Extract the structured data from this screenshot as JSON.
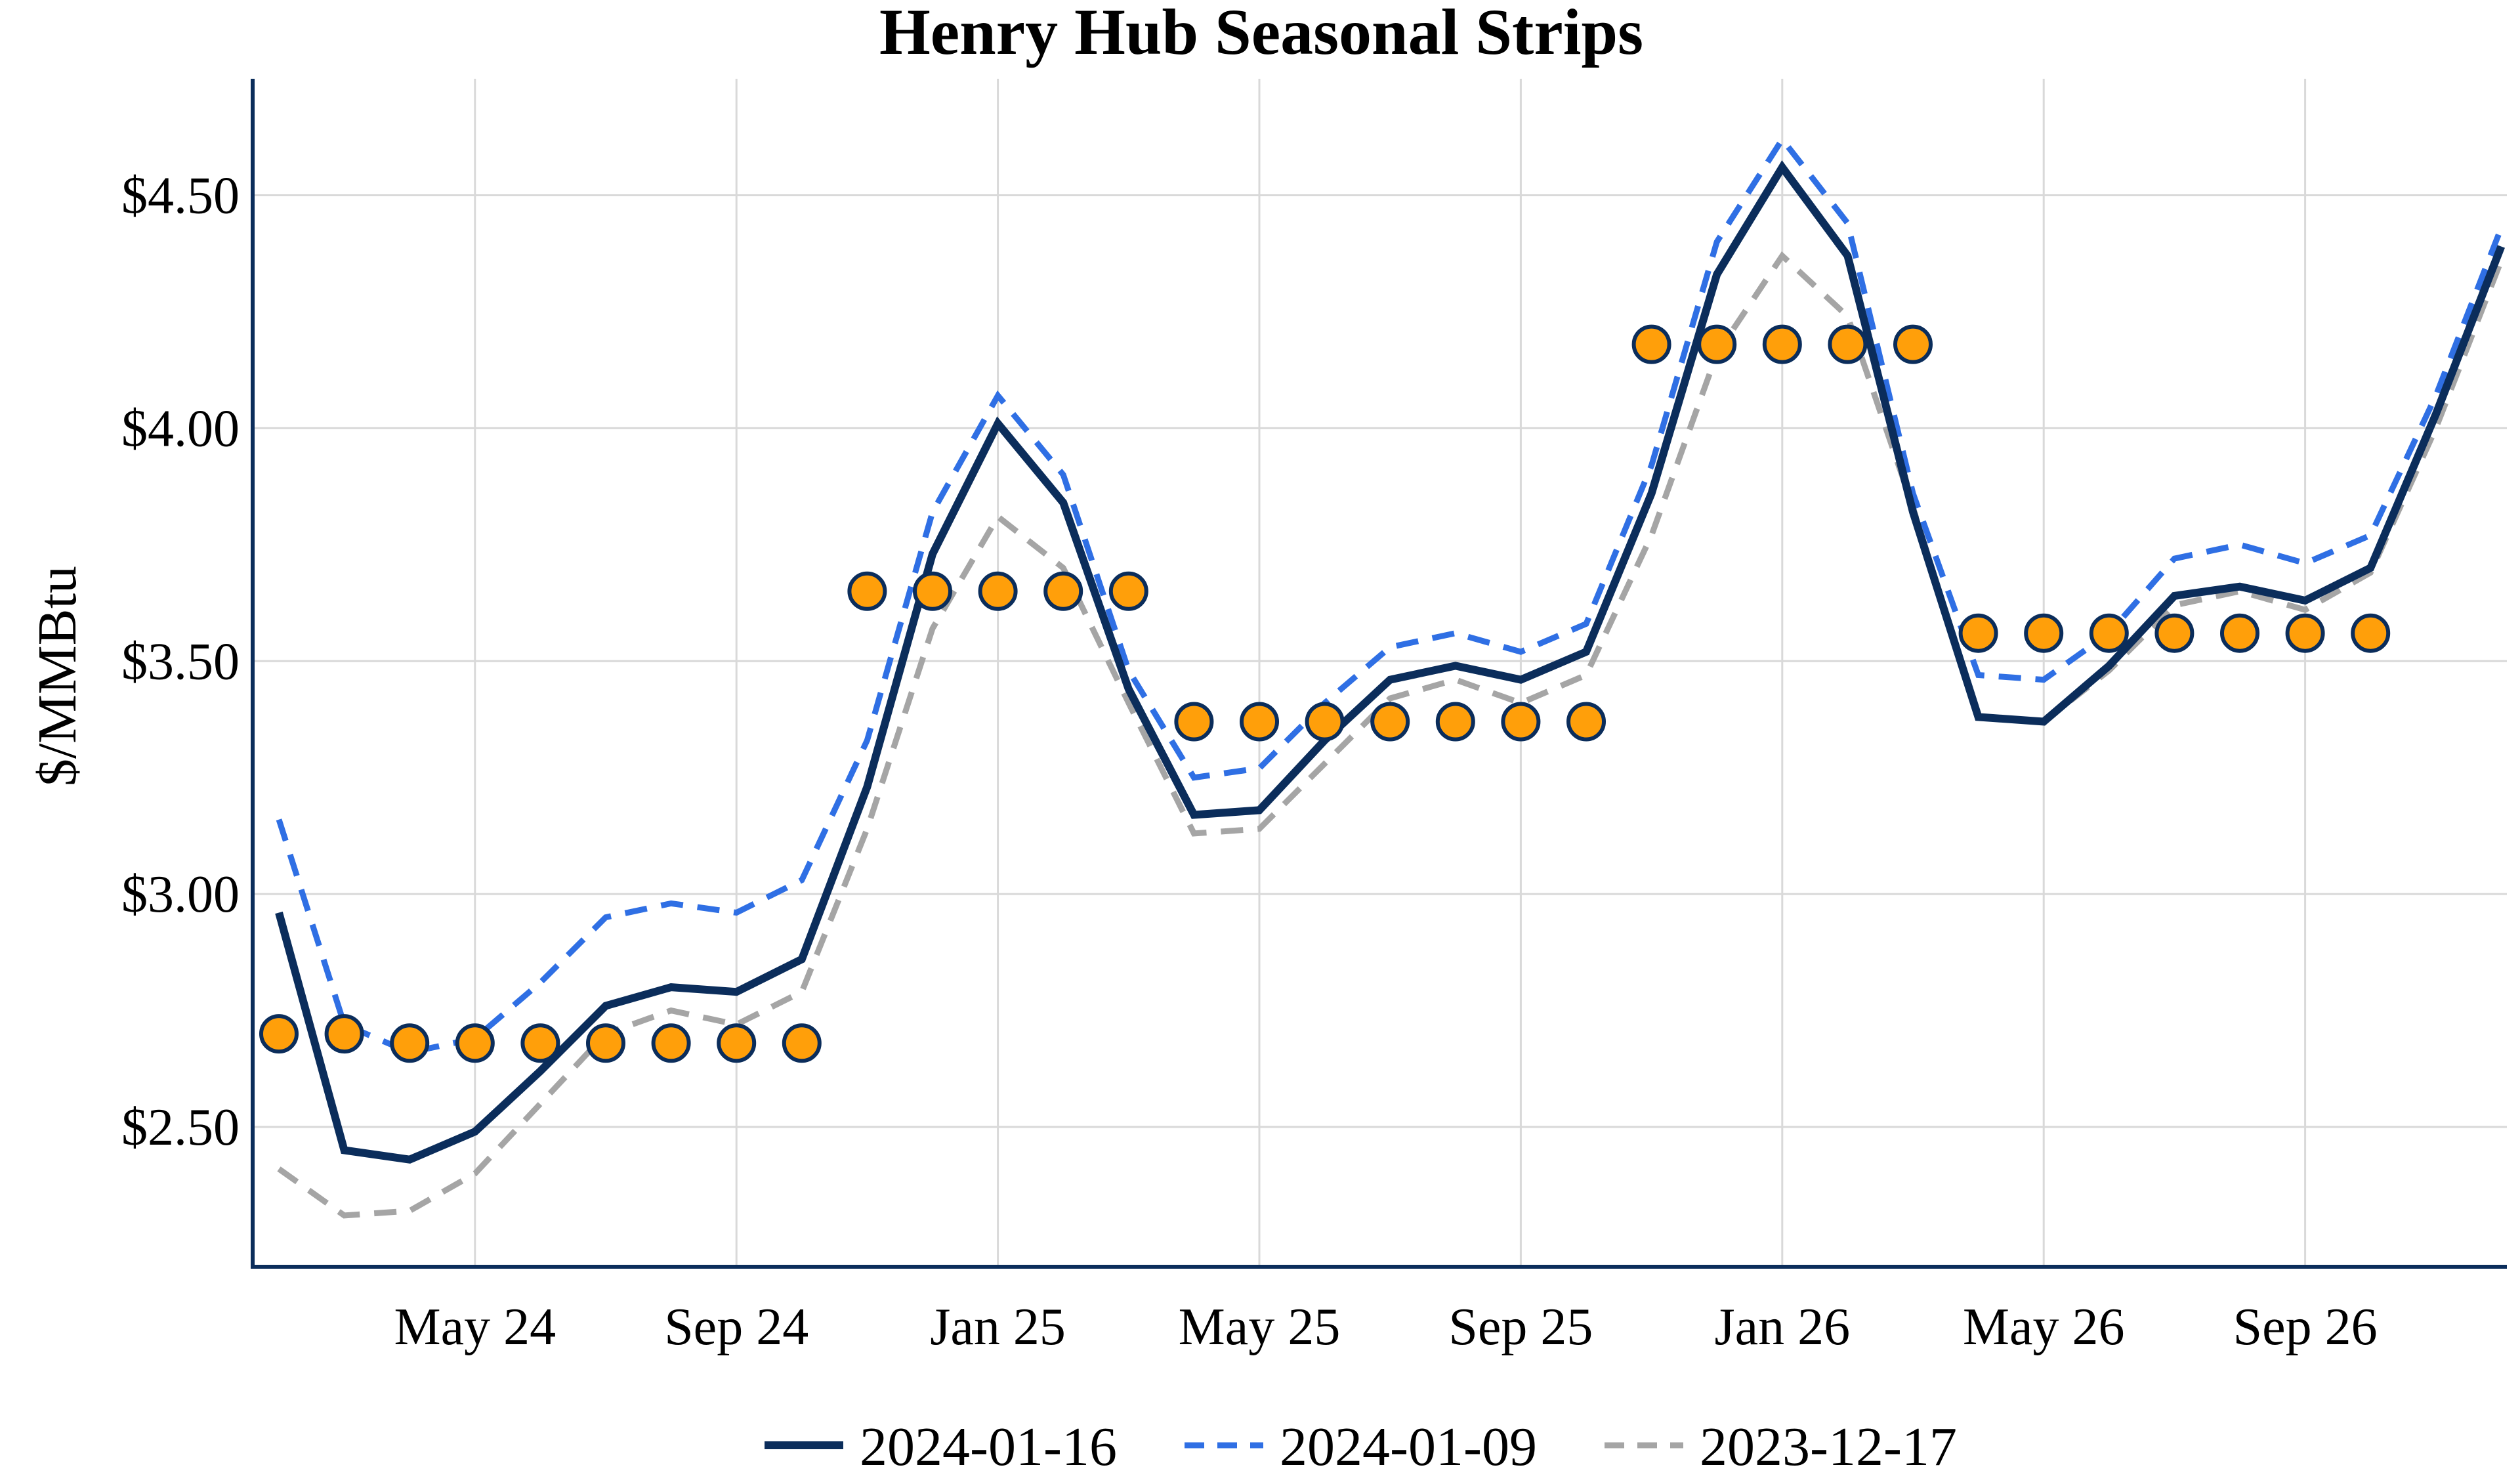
{
  "chart_data": {
    "type": "line",
    "title": "Henry Hub Seasonal Strips",
    "ylabel": "$/MMBtu",
    "xlabel": "",
    "ylim": [
      2.2,
      4.75
    ],
    "xlim": [
      "2024-02",
      "2026-12"
    ],
    "grid": true,
    "legend_position": "bottom-center",
    "y_ticks": [
      {
        "value": 2.5,
        "label": "$2.50"
      },
      {
        "value": 3.0,
        "label": "$3.00"
      },
      {
        "value": 3.5,
        "label": "$3.50"
      },
      {
        "value": 4.0,
        "label": "$4.00"
      },
      {
        "value": 4.5,
        "label": "$4.50"
      }
    ],
    "x_ticks": [
      {
        "value": "2024-05",
        "label": "May 24"
      },
      {
        "value": "2024-09",
        "label": "Sep 24"
      },
      {
        "value": "2025-01",
        "label": "Jan 25"
      },
      {
        "value": "2025-05",
        "label": "May 25"
      },
      {
        "value": "2025-09",
        "label": "Sep 25"
      },
      {
        "value": "2026-01",
        "label": "Jan 26"
      },
      {
        "value": "2026-05",
        "label": "May 26"
      },
      {
        "value": "2026-09",
        "label": "Sep 26"
      }
    ],
    "x": [
      "2024-02",
      "2024-03",
      "2024-04",
      "2024-05",
      "2024-06",
      "2024-07",
      "2024-08",
      "2024-09",
      "2024-10",
      "2024-11",
      "2024-12",
      "2025-01",
      "2025-02",
      "2025-03",
      "2025-04",
      "2025-05",
      "2025-06",
      "2025-07",
      "2025-08",
      "2025-09",
      "2025-10",
      "2025-11",
      "2025-12",
      "2026-01",
      "2026-02",
      "2026-03",
      "2026-04",
      "2026-05",
      "2026-06",
      "2026-07",
      "2026-08",
      "2026-09",
      "2026-10",
      "2026-11",
      "2026-12"
    ],
    "series": [
      {
        "name": "2024-01-16",
        "color": "#0b2d5b",
        "style": "solid",
        "values": [
          2.96,
          2.45,
          2.43,
          2.49,
          2.62,
          2.76,
          2.8,
          2.79,
          2.86,
          3.23,
          3.73,
          4.01,
          3.84,
          3.44,
          3.17,
          3.18,
          3.33,
          3.46,
          3.49,
          3.46,
          3.52,
          3.86,
          4.33,
          4.56,
          4.37,
          3.82,
          3.38,
          3.37,
          3.49,
          3.64,
          3.66,
          3.63,
          3.7,
          4.03,
          4.39
        ]
      },
      {
        "name": "2024-01-09",
        "color": "#2f6fe4",
        "style": "dashed",
        "values": [
          3.16,
          2.72,
          2.66,
          2.69,
          2.81,
          2.95,
          2.98,
          2.96,
          3.03,
          3.33,
          3.82,
          4.07,
          3.9,
          3.48,
          3.25,
          3.27,
          3.41,
          3.53,
          3.56,
          3.52,
          3.58,
          3.92,
          4.4,
          4.62,
          4.44,
          3.86,
          3.47,
          3.46,
          3.56,
          3.72,
          3.75,
          3.71,
          3.77,
          4.07,
          4.43
        ]
      },
      {
        "name": "2023-12-17",
        "color": "#a5a5a5",
        "style": "dashed",
        "values": [
          2.41,
          2.31,
          2.32,
          2.4,
          2.55,
          2.7,
          2.75,
          2.72,
          2.79,
          3.14,
          3.57,
          3.81,
          3.7,
          3.41,
          3.13,
          3.14,
          3.28,
          3.42,
          3.46,
          3.41,
          3.47,
          3.77,
          4.16,
          4.37,
          4.24,
          3.83,
          3.38,
          3.37,
          3.48,
          3.62,
          3.65,
          3.61,
          3.69,
          4.0,
          4.36
        ]
      }
    ],
    "strip_markers": {
      "color": "#ff9f0a",
      "edge_color": "#0b2d5b",
      "strips": [
        {
          "x_start": "2024-02",
          "x_end": "2024-03",
          "value": 2.7
        },
        {
          "x_start": "2024-04",
          "x_end": "2024-10",
          "value": 2.68
        },
        {
          "x_start": "2024-11",
          "x_end": "2025-03",
          "value": 3.65
        },
        {
          "x_start": "2025-04",
          "x_end": "2025-10",
          "value": 3.37
        },
        {
          "x_start": "2025-11",
          "x_end": "2026-03",
          "value": 4.18
        },
        {
          "x_start": "2026-04",
          "x_end": "2026-10",
          "value": 3.56
        }
      ]
    }
  }
}
